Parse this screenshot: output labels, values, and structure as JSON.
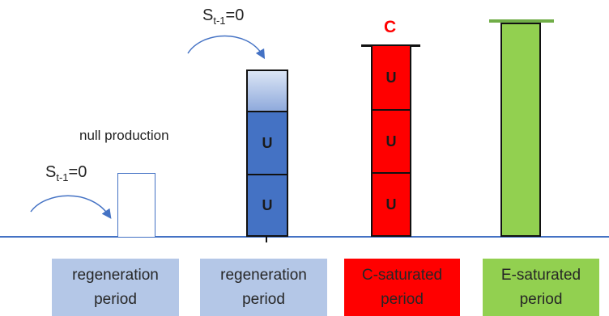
{
  "annotations": {
    "s_label_1_main": "S",
    "s_label_1_sub": "t-1",
    "s_label_1_rest": "=0",
    "s_label_2_main": "S",
    "s_label_2_sub": "t-1",
    "s_label_2_rest": "=0",
    "null_production": "null production",
    "c_marker": "C"
  },
  "cells": {
    "blue_u_1": "U",
    "blue_u_2": "U",
    "red_u_1": "U",
    "red_u_2": "U",
    "red_u_3": "U"
  },
  "captions": [
    {
      "line1": "regeneration",
      "line2": "period"
    },
    {
      "line1": "regeneration",
      "line2": "period"
    },
    {
      "line1": "C-saturated",
      "line2": "period"
    },
    {
      "line1": "E-saturated",
      "line2": "period"
    }
  ],
  "colors": {
    "baseline": "#4472c4",
    "blue_bar": "#4472c4",
    "blue_bar_top_light": "#b4c7e7",
    "red_bar": "#ff0000",
    "green_bar": "#92d050",
    "caption_blue": "#b4c7e7",
    "caption_red": "#ff0000",
    "caption_green": "#92d050",
    "c_marker": "#ff0000"
  }
}
